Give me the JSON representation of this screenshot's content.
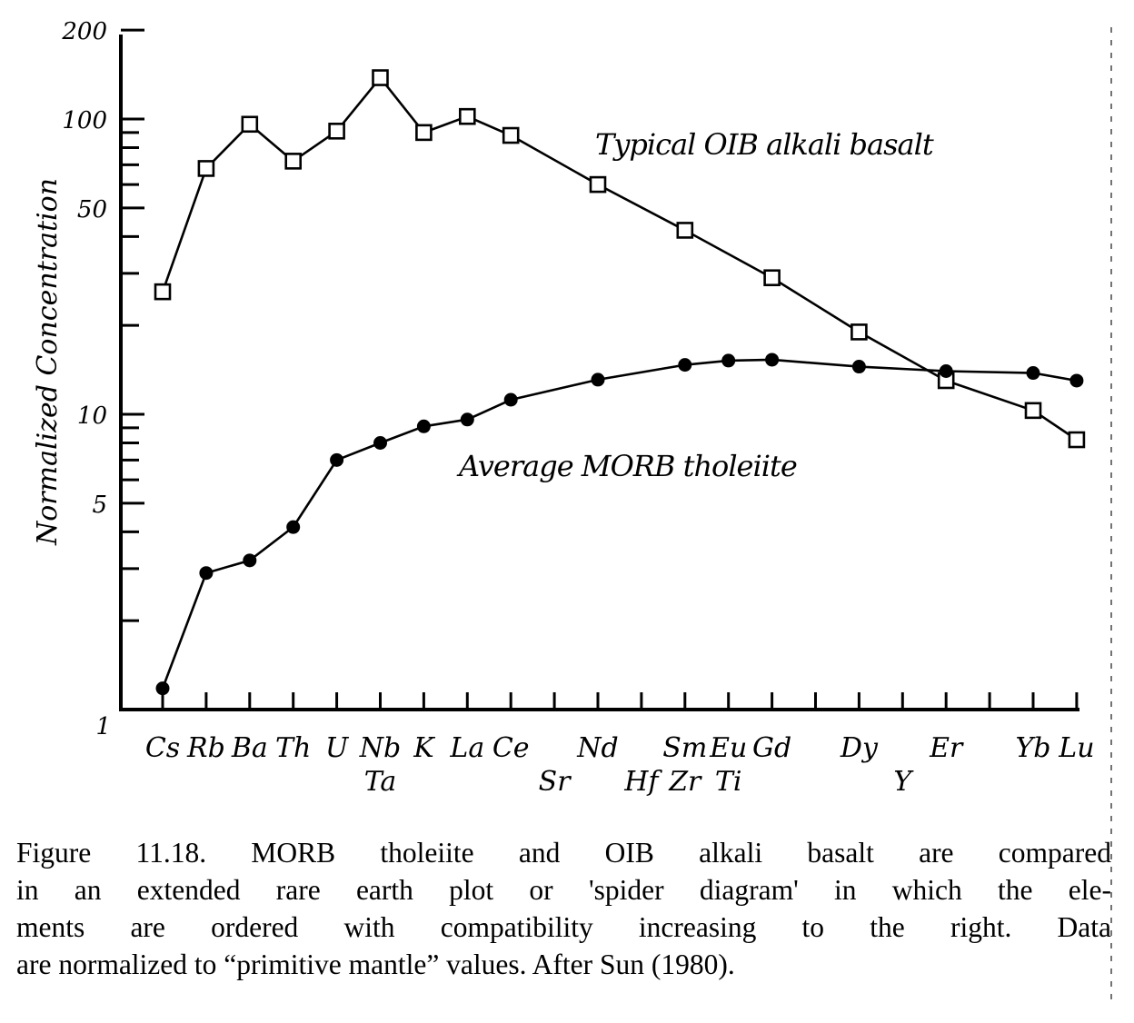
{
  "chart_data": {
    "type": "line",
    "title": "",
    "xlabel": "",
    "ylabel": "Normalized Concentration",
    "yscale": "log",
    "ylim": [
      1,
      200
    ],
    "yticks_labeled": [
      1,
      5,
      10,
      50,
      100,
      200
    ],
    "yticks_labels": [
      "1",
      "5",
      "10",
      "50",
      "100",
      "200"
    ],
    "yticks_minor": [
      2,
      3,
      4,
      6,
      7,
      8,
      9,
      20,
      30,
      40,
      60,
      70,
      80,
      90
    ],
    "grid": false,
    "categories": [
      "Cs",
      "Rb",
      "Ba",
      "Th",
      "U",
      "Nb",
      "K",
      "La",
      "Ce",
      "Sr",
      "Nd",
      "Hf",
      "Sm",
      "Eu",
      "Gd",
      "Dy",
      "Y",
      "Er",
      "Yb",
      "Lu"
    ],
    "x_positions": [
      "Cs",
      "Rb",
      "Ba",
      "Th",
      "U",
      "Nb/Ta",
      "K",
      "La",
      "Ce",
      "Sr",
      "Nd",
      "Hf",
      "Sm/Zr",
      "Eu/Ti",
      "Gd",
      "",
      "Dy",
      "Y",
      "Er",
      "",
      "Yb",
      "Lu"
    ],
    "x_labels": [
      {
        "text": "Cs",
        "row": 1,
        "slot": 0
      },
      {
        "text": "Rb",
        "row": 1,
        "slot": 1
      },
      {
        "text": "Ba",
        "row": 1,
        "slot": 2
      },
      {
        "text": "Th",
        "row": 1,
        "slot": 3
      },
      {
        "text": "U",
        "row": 1,
        "slot": 4
      },
      {
        "text": "Nb",
        "row": 1,
        "slot": 5
      },
      {
        "text": "Ta",
        "row": 2,
        "slot": 5
      },
      {
        "text": "K",
        "row": 1,
        "slot": 6
      },
      {
        "text": "La",
        "row": 1,
        "slot": 7
      },
      {
        "text": "Ce",
        "row": 1,
        "slot": 8
      },
      {
        "text": "Sr",
        "row": 2,
        "slot": 9
      },
      {
        "text": "Nd",
        "row": 1,
        "slot": 10
      },
      {
        "text": "Hf",
        "row": 2,
        "slot": 11
      },
      {
        "text": "Sm",
        "row": 1,
        "slot": 12
      },
      {
        "text": "Zr",
        "row": 2,
        "slot": 12
      },
      {
        "text": "Eu",
        "row": 1,
        "slot": 13
      },
      {
        "text": "Ti",
        "row": 2,
        "slot": 13
      },
      {
        "text": "Gd",
        "row": 1,
        "slot": 14
      },
      {
        "text": "Dy",
        "row": 1,
        "slot": 16
      },
      {
        "text": "Y",
        "row": 2,
        "slot": 17
      },
      {
        "text": "Er",
        "row": 1,
        "slot": 18
      },
      {
        "text": "Yb",
        "row": 1,
        "slot": 20
      },
      {
        "text": "Lu",
        "row": 1,
        "slot": 21
      }
    ],
    "series": [
      {
        "name": "Typical OIB alkali basalt",
        "marker": "open-square",
        "points": [
          {
            "element": "Cs",
            "slot": 0,
            "value": 26
          },
          {
            "element": "Rb",
            "slot": 1,
            "value": 68
          },
          {
            "element": "Ba",
            "slot": 2,
            "value": 96
          },
          {
            "element": "Th",
            "slot": 3,
            "value": 72
          },
          {
            "element": "U",
            "slot": 4,
            "value": 91
          },
          {
            "element": "Nb",
            "slot": 5,
            "value": 138
          },
          {
            "element": "K",
            "slot": 6,
            "value": 90
          },
          {
            "element": "La",
            "slot": 7,
            "value": 102
          },
          {
            "element": "Ce",
            "slot": 8,
            "value": 88
          },
          {
            "element": "Nd",
            "slot": 10,
            "value": 60
          },
          {
            "element": "Sm",
            "slot": 12,
            "value": 42
          },
          {
            "element": "Gd",
            "slot": 14,
            "value": 29
          },
          {
            "element": "Dy",
            "slot": 16,
            "value": 19
          },
          {
            "element": "Er",
            "slot": 18,
            "value": 13
          },
          {
            "element": "Yb",
            "slot": 20,
            "value": 10.3
          },
          {
            "element": "Lu",
            "slot": 21,
            "value": 8.2
          }
        ]
      },
      {
        "name": "Average MORB tholeiite",
        "marker": "filled-circle",
        "points": [
          {
            "element": "Cs",
            "slot": 0,
            "value": 1.18
          },
          {
            "element": "Rb",
            "slot": 1,
            "value": 2.9
          },
          {
            "element": "Ba",
            "slot": 2,
            "value": 3.2
          },
          {
            "element": "Th",
            "slot": 3,
            "value": 4.15
          },
          {
            "element": "U",
            "slot": 4,
            "value": 7.0
          },
          {
            "element": "Nb",
            "slot": 5,
            "value": 8.0
          },
          {
            "element": "K",
            "slot": 6,
            "value": 9.1
          },
          {
            "element": "La",
            "slot": 7,
            "value": 9.6
          },
          {
            "element": "Ce",
            "slot": 8,
            "value": 11.2
          },
          {
            "element": "Nd",
            "slot": 10,
            "value": 13.1
          },
          {
            "element": "Sm",
            "slot": 12,
            "value": 14.7
          },
          {
            "element": "Eu",
            "slot": 13,
            "value": 15.2
          },
          {
            "element": "Gd",
            "slot": 14,
            "value": 15.3
          },
          {
            "element": "Dy",
            "slot": 16,
            "value": 14.5
          },
          {
            "element": "Er",
            "slot": 18,
            "value": 14.0
          },
          {
            "element": "Yb",
            "slot": 20,
            "value": 13.8
          },
          {
            "element": "Lu",
            "slot": 21,
            "value": 13.0
          }
        ]
      }
    ],
    "annotations": [
      "Typical OIB alkali basalt",
      "Average MORB tholeiite"
    ]
  },
  "caption": {
    "lines": [
      "Figure 11.18.  MORB tholeiite   and OIB alkali   basalt  are compared",
      "in an extended rare earth plot   or 'spider diagram'  in which  the ele-",
      "ments are ordered with compatibility   increasing to the right.  Data",
      "are normalized to “primitive mantle” values.  After Sun (1980)."
    ]
  },
  "colors": {
    "ink": "#000000",
    "paper": "#ffffff"
  }
}
